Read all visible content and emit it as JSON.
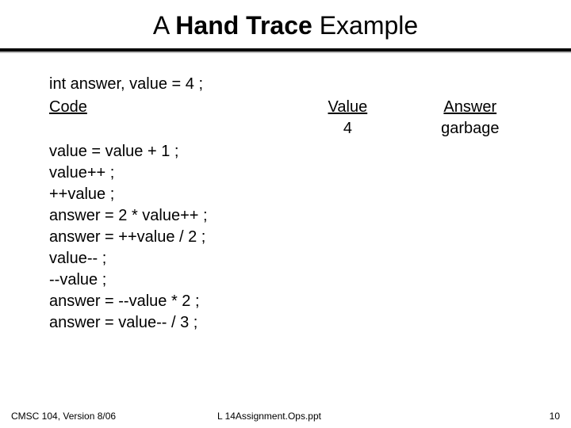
{
  "title": {
    "part1": "A ",
    "part2": "Hand Trace",
    "part3": " Example"
  },
  "declaration": "int answer, value = 4 ;",
  "headers": {
    "code": "Code",
    "value": "Value",
    "answer": "Answer"
  },
  "initial": {
    "value": "4",
    "answer": "garbage"
  },
  "code_lines": [
    "value = value + 1 ;",
    "value++ ;",
    "++value ;",
    "answer = 2 * value++ ;",
    "answer = ++value / 2 ;",
    "value-- ;",
    "--value ;",
    "answer = --value * 2 ;",
    "answer = value-- / 3 ;"
  ],
  "footer": {
    "left": "CMSC 104, Version 8/06",
    "center": "L 14Assignment.Ops.ppt",
    "page": "10"
  },
  "colors": {
    "background": "#ffffff",
    "text": "#000000",
    "divider_shadow": "#bdbdbd"
  }
}
